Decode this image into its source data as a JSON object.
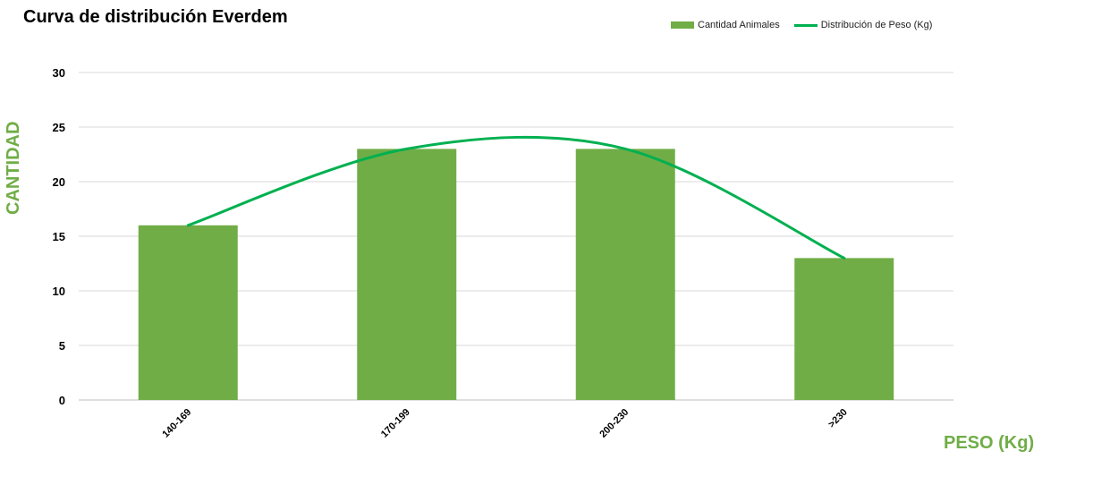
{
  "chart_data": {
    "type": "bar",
    "title": "Curva de distribución Everdem",
    "xlabel": "PESO (Kg)",
    "ylabel": "CANTIDAD",
    "categories": [
      "140-169",
      "170-199",
      "200-230",
      ">230"
    ],
    "series": [
      {
        "name": "Cantidad Animales",
        "type": "bar",
        "values": [
          16,
          23,
          23,
          13
        ],
        "color": "#70ad47"
      },
      {
        "name": "Distribución de Peso (Kg)",
        "type": "line",
        "values": [
          16,
          23,
          23,
          13
        ],
        "color": "#00b050"
      }
    ],
    "ylim": [
      0,
      30
    ],
    "yticks": [
      0,
      5,
      10,
      15,
      20,
      25,
      30
    ],
    "grid": true,
    "legend": "top-right",
    "axis_label_color": "#70ad47"
  }
}
